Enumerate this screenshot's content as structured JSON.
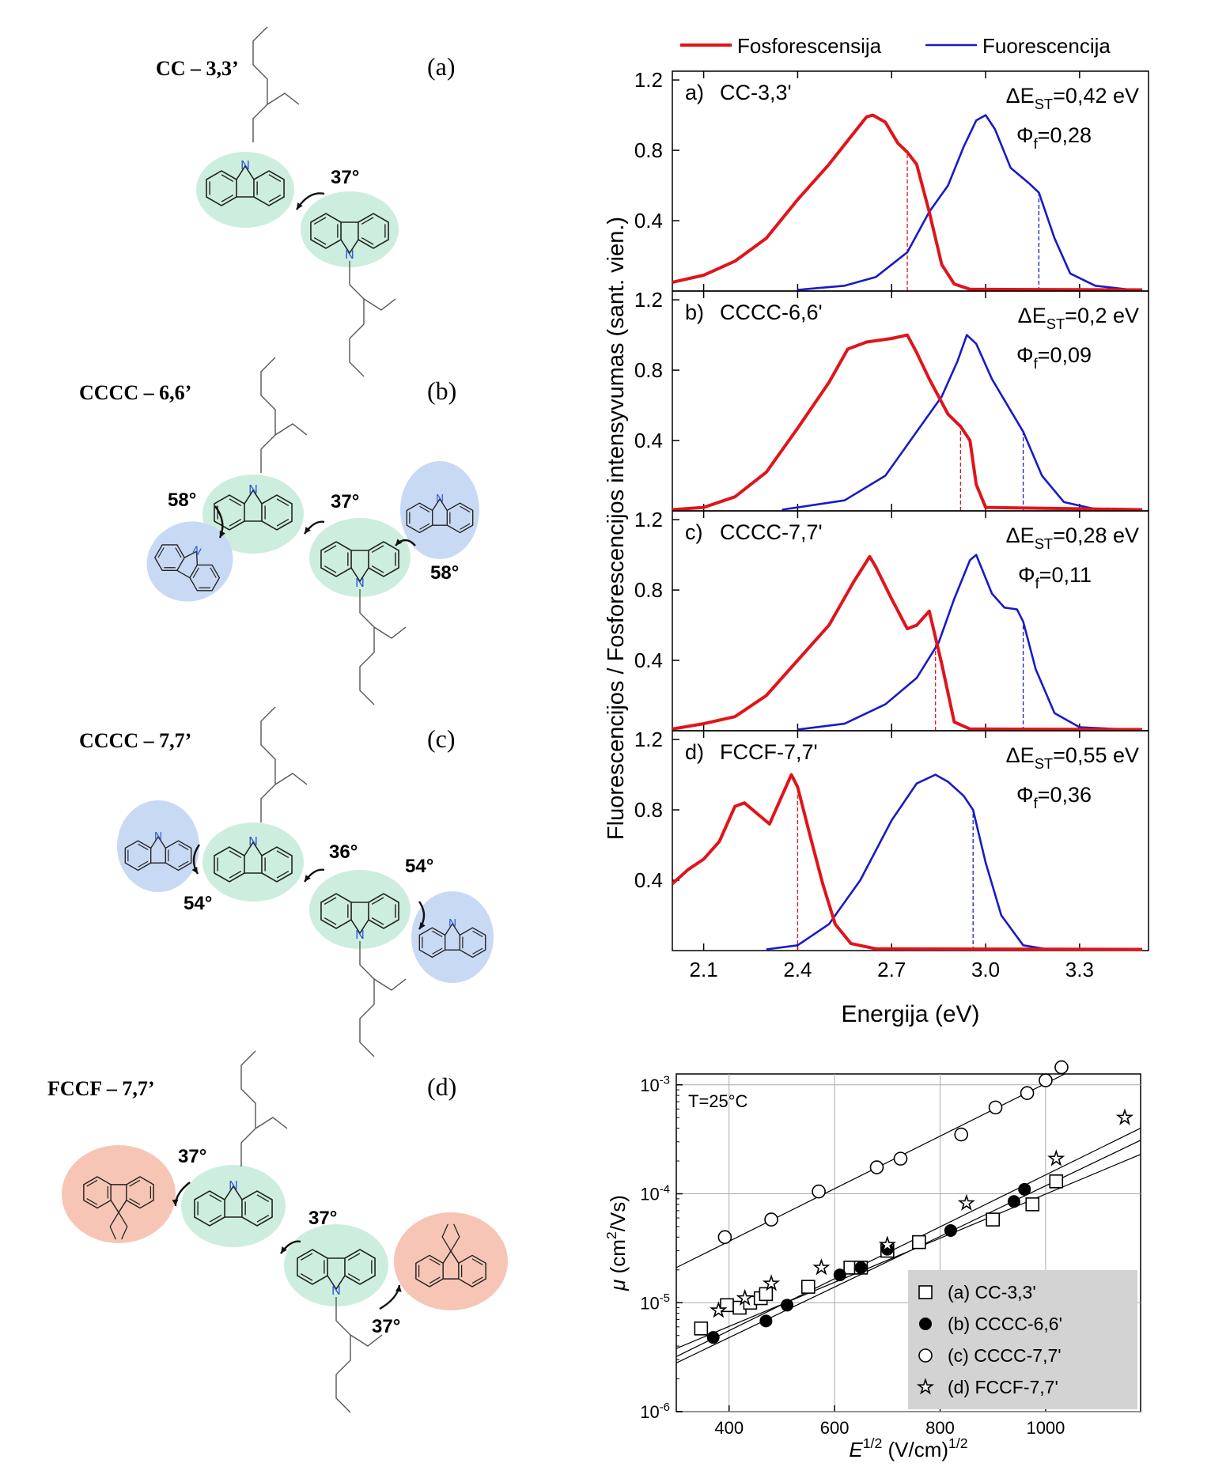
{
  "molecules": [
    {
      "name": "CC – 3,3’",
      "tag": "(a)",
      "angles": [
        "37°"
      ]
    },
    {
      "name": "CCCC – 6,6’",
      "tag": "(b)",
      "angles": [
        "58°",
        "37°",
        "58°"
      ]
    },
    {
      "name": "CCCC – 7,7’",
      "tag": "(c)",
      "angles": [
        "54°",
        "36°",
        "54°"
      ]
    },
    {
      "name": "FCCF – 7,7’",
      "tag": "(d)",
      "angles": [
        "37°",
        "37°",
        "37°"
      ]
    }
  ],
  "atom_label": "N",
  "colors": {
    "phosphorescence": "#e0141b",
    "fluorescence": "#1a1ac6",
    "carbazole_core": "#cdeede",
    "carbazole_side": "#c8d9f3",
    "fluorene": "#f7c5b5",
    "legend_box": "#d3d3d3"
  },
  "chart_data": [
    {
      "type": "line",
      "legend": [
        "Fosforescensija",
        "Fuorescencija"
      ],
      "xlabel": "Energija (eV)",
      "ylabel": "Fluorescencijos / Fosforescencijos intensyvumas (sant. vien.)",
      "xlim": [
        2.0,
        3.52
      ],
      "ylim": [
        0.0,
        1.25
      ],
      "xticks": [
        "2.1",
        "2.4",
        "2.7",
        "3.0",
        "3.3"
      ],
      "yticks": [
        "0.4",
        "0.8",
        "1.2"
      ],
      "panels": [
        {
          "label": "a)",
          "name": "CC-3,3'",
          "dest": "ΔE",
          "dest_sub": "ST",
          "dest_val": "=0,42 eV",
          "phi": "Φ",
          "phi_sub": "f",
          "phi_val": "=0,28",
          "phos_onset": 2.75,
          "fluo_onset": 3.17,
          "phos": [
            [
              2.0,
              0.05
            ],
            [
              2.1,
              0.09
            ],
            [
              2.2,
              0.17
            ],
            [
              2.3,
              0.3
            ],
            [
              2.4,
              0.52
            ],
            [
              2.5,
              0.72
            ],
            [
              2.58,
              0.9
            ],
            [
              2.62,
              0.99
            ],
            [
              2.64,
              1.0
            ],
            [
              2.68,
              0.96
            ],
            [
              2.72,
              0.84
            ],
            [
              2.75,
              0.79
            ],
            [
              2.78,
              0.72
            ],
            [
              2.82,
              0.45
            ],
            [
              2.86,
              0.15
            ],
            [
              2.9,
              0.04
            ],
            [
              2.95,
              0.01
            ],
            [
              3.5,
              0.0
            ]
          ],
          "fluo": [
            [
              2.4,
              0.0
            ],
            [
              2.55,
              0.03
            ],
            [
              2.65,
              0.08
            ],
            [
              2.75,
              0.22
            ],
            [
              2.82,
              0.45
            ],
            [
              2.88,
              0.6
            ],
            [
              2.93,
              0.82
            ],
            [
              2.97,
              0.97
            ],
            [
              3.0,
              1.0
            ],
            [
              3.03,
              0.92
            ],
            [
              3.08,
              0.7
            ],
            [
              3.14,
              0.61
            ],
            [
              3.17,
              0.56
            ],
            [
              3.22,
              0.3
            ],
            [
              3.27,
              0.1
            ],
            [
              3.35,
              0.03
            ],
            [
              3.45,
              0.01
            ],
            [
              3.5,
              0.0
            ]
          ]
        },
        {
          "label": "b)",
          "name": "CCCC-6,6'",
          "dest": "ΔE",
          "dest_sub": "ST",
          "dest_val": "=0,2 eV",
          "phi": "Φ",
          "phi_sub": "f",
          "phi_val": "=0,09",
          "phos_onset": 2.92,
          "fluo_onset": 3.12,
          "phos": [
            [
              2.0,
              0.0
            ],
            [
              2.1,
              0.02
            ],
            [
              2.2,
              0.08
            ],
            [
              2.3,
              0.22
            ],
            [
              2.4,
              0.47
            ],
            [
              2.5,
              0.73
            ],
            [
              2.56,
              0.92
            ],
            [
              2.62,
              0.96
            ],
            [
              2.7,
              0.98
            ],
            [
              2.75,
              1.0
            ],
            [
              2.78,
              0.9
            ],
            [
              2.82,
              0.75
            ],
            [
              2.88,
              0.55
            ],
            [
              2.92,
              0.48
            ],
            [
              2.95,
              0.4
            ],
            [
              2.97,
              0.15
            ],
            [
              3.0,
              0.02
            ],
            [
              3.5,
              0.0
            ]
          ],
          "fluo": [
            [
              2.35,
              0.0
            ],
            [
              2.55,
              0.06
            ],
            [
              2.68,
              0.2
            ],
            [
              2.78,
              0.45
            ],
            [
              2.86,
              0.65
            ],
            [
              2.91,
              0.85
            ],
            [
              2.94,
              1.0
            ],
            [
              2.97,
              0.95
            ],
            [
              3.02,
              0.75
            ],
            [
              3.08,
              0.57
            ],
            [
              3.12,
              0.45
            ],
            [
              3.18,
              0.2
            ],
            [
              3.25,
              0.05
            ],
            [
              3.35,
              0.01
            ],
            [
              3.5,
              0.0
            ]
          ]
        },
        {
          "label": "c)",
          "name": "CCCC-7,7'",
          "dest": "ΔE",
          "dest_sub": "ST",
          "dest_val": "=0,28 eV",
          "phi": "Φ",
          "phi_sub": "f",
          "phi_val": "=0,11",
          "phos_onset": 2.84,
          "fluo_onset": 3.12,
          "phos": [
            [
              2.0,
              0.01
            ],
            [
              2.1,
              0.04
            ],
            [
              2.2,
              0.08
            ],
            [
              2.3,
              0.2
            ],
            [
              2.4,
              0.4
            ],
            [
              2.5,
              0.6
            ],
            [
              2.58,
              0.85
            ],
            [
              2.63,
              0.99
            ],
            [
              2.65,
              0.93
            ],
            [
              2.7,
              0.75
            ],
            [
              2.75,
              0.58
            ],
            [
              2.78,
              0.6
            ],
            [
              2.82,
              0.68
            ],
            [
              2.86,
              0.38
            ],
            [
              2.9,
              0.05
            ],
            [
              2.95,
              0.01
            ],
            [
              3.5,
              0.0
            ]
          ],
          "fluo": [
            [
              2.4,
              0.0
            ],
            [
              2.55,
              0.04
            ],
            [
              2.68,
              0.15
            ],
            [
              2.78,
              0.3
            ],
            [
              2.85,
              0.5
            ],
            [
              2.9,
              0.75
            ],
            [
              2.95,
              0.97
            ],
            [
              2.97,
              1.0
            ],
            [
              3.02,
              0.78
            ],
            [
              3.06,
              0.7
            ],
            [
              3.1,
              0.69
            ],
            [
              3.12,
              0.62
            ],
            [
              3.16,
              0.35
            ],
            [
              3.22,
              0.1
            ],
            [
              3.3,
              0.02
            ],
            [
              3.45,
              0.0
            ]
          ]
        },
        {
          "label": "d)",
          "name": "FCCF-7,7'",
          "dest": "ΔE",
          "dest_sub": "ST",
          "dest_val": "=0,55 eV",
          "phi": "Φ",
          "phi_sub": "f",
          "phi_val": "=0,36",
          "phos_onset": 2.4,
          "fluo_onset": 2.96,
          "phos": [
            [
              2.0,
              0.38
            ],
            [
              2.05,
              0.46
            ],
            [
              2.1,
              0.52
            ],
            [
              2.15,
              0.62
            ],
            [
              2.2,
              0.82
            ],
            [
              2.23,
              0.84
            ],
            [
              2.27,
              0.78
            ],
            [
              2.31,
              0.72
            ],
            [
              2.35,
              0.88
            ],
            [
              2.38,
              1.0
            ],
            [
              2.4,
              0.93
            ],
            [
              2.44,
              0.65
            ],
            [
              2.48,
              0.38
            ],
            [
              2.52,
              0.15
            ],
            [
              2.57,
              0.04
            ],
            [
              2.65,
              0.01
            ],
            [
              3.5,
              0.0
            ]
          ],
          "fluo": [
            [
              2.3,
              0.0
            ],
            [
              2.4,
              0.03
            ],
            [
              2.5,
              0.15
            ],
            [
              2.6,
              0.4
            ],
            [
              2.7,
              0.74
            ],
            [
              2.78,
              0.95
            ],
            [
              2.84,
              1.0
            ],
            [
              2.88,
              0.96
            ],
            [
              2.93,
              0.88
            ],
            [
              2.96,
              0.8
            ],
            [
              3.0,
              0.5
            ],
            [
              3.05,
              0.2
            ],
            [
              3.12,
              0.03
            ],
            [
              3.2,
              0.0
            ]
          ]
        }
      ]
    },
    {
      "type": "scatter",
      "xlabel": "E1/2 (V/cm)1/2",
      "ylabel": "μ (cm2/Vs)",
      "xlabel_parts": [
        "E",
        "1/2",
        " (V/cm)",
        "1/2"
      ],
      "ylabel_parts": [
        "μ",
        " (cm",
        "2",
        "/Vs)"
      ],
      "annotation": "T=25°C",
      "xlim": [
        300,
        1180
      ],
      "ylim_log10": [
        -6,
        -2.9
      ],
      "log_y": true,
      "grid": true,
      "xticks": [
        "400",
        "600",
        "800",
        "1000"
      ],
      "yticks": [
        {
          "base": "10",
          "exp": "-6"
        },
        {
          "base": "10",
          "exp": "-5"
        },
        {
          "base": "10",
          "exp": "-4"
        },
        {
          "base": "10",
          "exp": "-3"
        }
      ],
      "legend_position": "bottom-right",
      "series": [
        {
          "name": "(a) CC-3,3'",
          "marker": "square-open",
          "points": [
            [
              347,
              5.8e-06
            ],
            [
              396,
              9.5e-06
            ],
            [
              420,
              9e-06
            ],
            [
              440,
              1e-05
            ],
            [
              460,
              1.1e-05
            ],
            [
              470,
              1.2e-05
            ],
            [
              550,
              1.4e-05
            ],
            [
              630,
              2.1e-05
            ],
            [
              650,
              2.1e-05
            ],
            [
              700,
              3e-05
            ],
            [
              760,
              3.6e-05
            ],
            [
              900,
              5.8e-05
            ],
            [
              975,
              8e-05
            ],
            [
              1020,
              0.00013
            ]
          ],
          "fit": [
            [
              300,
              3.8e-06
            ],
            [
              1180,
              0.00023
            ]
          ]
        },
        {
          "name": "(b) CCCC-6,6'",
          "marker": "circle-filled",
          "points": [
            [
              370,
              4.8e-06
            ],
            [
              470,
              6.8e-06
            ],
            [
              510,
              9.5e-06
            ],
            [
              610,
              1.8e-05
            ],
            [
              650,
              2.1e-05
            ],
            [
              700,
              3.1e-05
            ],
            [
              820,
              4.6e-05
            ],
            [
              940,
              8.5e-05
            ],
            [
              960,
              0.00011
            ]
          ],
          "fit": [
            [
              300,
              2.8e-06
            ],
            [
              1180,
              0.00031
            ]
          ]
        },
        {
          "name": "(c) CCCC-7,7'",
          "marker": "circle-open",
          "points": [
            [
              392,
              4e-05
            ],
            [
              480,
              5.8e-05
            ],
            [
              570,
              0.000105
            ],
            [
              680,
              0.000175
            ],
            [
              725,
              0.00021
            ],
            [
              840,
              0.00035
            ],
            [
              905,
              0.00062
            ],
            [
              965,
              0.00084
            ],
            [
              1000,
              0.0011
            ],
            [
              1030,
              0.00145
            ]
          ],
          "fit": [
            [
              300,
              2.1e-05
            ],
            [
              1180,
              0.0028
            ]
          ]
        },
        {
          "name": "(d) FCCF-7,7'",
          "marker": "star-open",
          "points": [
            [
              380,
              8.5e-06
            ],
            [
              430,
              1.1e-05
            ],
            [
              480,
              1.5e-05
            ],
            [
              575,
              2.1e-05
            ],
            [
              700,
              3.4e-05
            ],
            [
              850,
              8.2e-05
            ],
            [
              1020,
              0.00021
            ],
            [
              1150,
              0.0005
            ]
          ],
          "fit": [
            [
              300,
              3.2e-06
            ],
            [
              1180,
              0.0004
            ]
          ]
        }
      ]
    }
  ]
}
